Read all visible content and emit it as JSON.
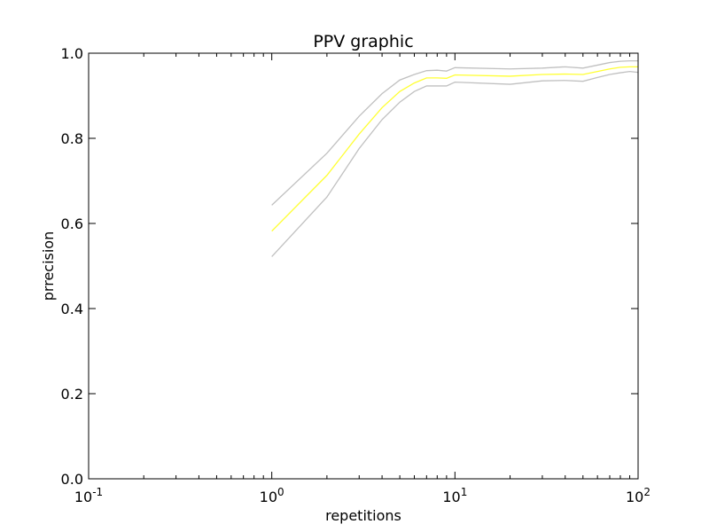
{
  "chart_data": {
    "type": "line",
    "title": "PPV graphic",
    "xlabel": "repetitions",
    "ylabel": "prrecision",
    "xscale": "log",
    "xlim": [
      0.1,
      100
    ],
    "ylim": [
      0.0,
      1.0
    ],
    "grid": false,
    "x_tick_labels": [
      {
        "value": 0.1,
        "base": "10",
        "exp": "-1"
      },
      {
        "value": 1,
        "base": "10",
        "exp": "0"
      },
      {
        "value": 10,
        "base": "10",
        "exp": "1"
      },
      {
        "value": 100,
        "base": "10",
        "exp": "2"
      }
    ],
    "y_ticks": [
      0.0,
      0.2,
      0.4,
      0.6,
      0.8,
      1.0
    ],
    "y_tick_labels": [
      "0.0",
      "0.2",
      "0.4",
      "0.6",
      "0.8",
      "1.0"
    ],
    "x": [
      1,
      2,
      3,
      4,
      5,
      6,
      7,
      8,
      9,
      10,
      20,
      30,
      40,
      50,
      60,
      70,
      80,
      90,
      100
    ],
    "series": [
      {
        "color": "#c0c0c0",
        "values": [
          0.643,
          0.765,
          0.852,
          0.905,
          0.937,
          0.95,
          0.959,
          0.96,
          0.958,
          0.966,
          0.963,
          0.965,
          0.968,
          0.965,
          0.972,
          0.978,
          0.981,
          0.982,
          0.982
        ]
      },
      {
        "color": "#ffff33",
        "values": [
          0.582,
          0.713,
          0.81,
          0.872,
          0.91,
          0.93,
          0.942,
          0.942,
          0.941,
          0.949,
          0.946,
          0.95,
          0.951,
          0.95,
          0.957,
          0.963,
          0.967,
          0.968,
          0.968
        ]
      },
      {
        "color": "#c0c0c0",
        "values": [
          0.522,
          0.662,
          0.776,
          0.844,
          0.885,
          0.91,
          0.923,
          0.923,
          0.923,
          0.932,
          0.927,
          0.935,
          0.936,
          0.934,
          0.943,
          0.95,
          0.954,
          0.957,
          0.955
        ]
      }
    ]
  }
}
